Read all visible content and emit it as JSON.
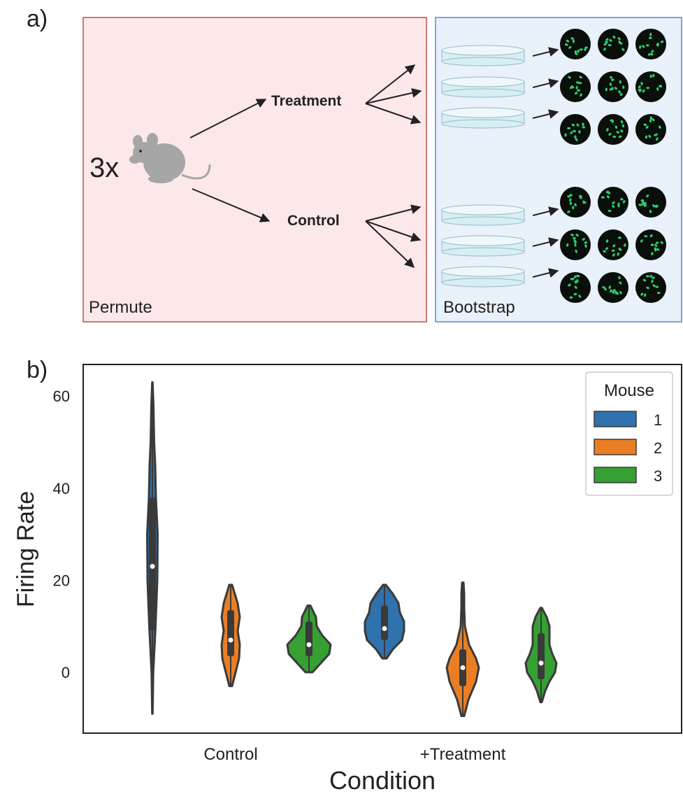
{
  "panel_a": {
    "label": "a)",
    "permute_label": "Permute",
    "bootstrap_label": "Bootstrap",
    "count_label": "3x",
    "treatment_label": "Treatment",
    "control_label": "Control",
    "colors": {
      "permute_bg": "#fce8e8",
      "permute_border": "#c0504d",
      "bootstrap_bg": "#e9f1fb",
      "bootstrap_border": "#5b8bc4",
      "mouse": "#a6a6a6",
      "dish": "#d6eef4",
      "cell_bg": "#0b0f0b",
      "cell": "#2ecc71"
    },
    "icons": [
      "mouse-icon",
      "petri-dish-icon",
      "cell-image-icon"
    ]
  },
  "panel_b": {
    "label": "b)"
  },
  "chart_data": {
    "type": "violin",
    "xlabel": "Condition",
    "ylabel": "Firing Rate",
    "categories": [
      "Control",
      "+Treatment"
    ],
    "ylim": [
      -12,
      67
    ],
    "yticks": [
      0,
      20,
      40,
      60
    ],
    "grid": false,
    "legend": {
      "title": "Mouse",
      "placement": "top-right"
    },
    "series": [
      {
        "name": "1",
        "color": "#2f72ad",
        "values": [
          {
            "category": "Control",
            "min": -9,
            "q1": 9,
            "median": 23,
            "q3": 38,
            "max": 63,
            "profile": [
              [
                -9,
                0.3
              ],
              [
                0,
                1.2
              ],
              [
                10,
                4.5
              ],
              [
                20,
                7
              ],
              [
                30,
                7.5
              ],
              [
                38,
                5
              ],
              [
                45,
                4
              ],
              [
                50,
                2.5
              ],
              [
                58,
                1.5
              ],
              [
                63,
                0.3
              ]
            ]
          },
          {
            "category": "+Treatment",
            "min": 3,
            "q1": 7,
            "median": 9.5,
            "q3": 14.5,
            "max": 19,
            "profile": [
              [
                3,
                3
              ],
              [
                5,
                12
              ],
              [
                7,
                25
              ],
              [
                9,
                28
              ],
              [
                11,
                28
              ],
              [
                13,
                22
              ],
              [
                15,
                20
              ],
              [
                17,
                12
              ],
              [
                19,
                2
              ]
            ]
          }
        ]
      },
      {
        "name": "2",
        "color": "#ea7e24",
        "values": [
          {
            "category": "Control",
            "min": -3,
            "q1": 3.5,
            "median": 7,
            "q3": 13.5,
            "max": 19,
            "profile": [
              [
                -3,
                2
              ],
              [
                0,
                7
              ],
              [
                3,
                12
              ],
              [
                6,
                13
              ],
              [
                9,
                10
              ],
              [
                12,
                13
              ],
              [
                15,
                10
              ],
              [
                17,
                6
              ],
              [
                19,
                2
              ]
            ]
          },
          {
            "category": "+Treatment",
            "min": -9.5,
            "q1": -3,
            "median": 1,
            "q3": 5,
            "max": 19.5,
            "profile": [
              [
                -9.5,
                2
              ],
              [
                -6,
                8
              ],
              [
                -2,
                19
              ],
              [
                1,
                23
              ],
              [
                3,
                19
              ],
              [
                6,
                9
              ],
              [
                10,
                3
              ],
              [
                14,
                2
              ],
              [
                17,
                2
              ],
              [
                19.5,
                1
              ]
            ]
          }
        ]
      },
      {
        "name": "3",
        "color": "#36a032",
        "values": [
          {
            "category": "Control",
            "min": 0,
            "q1": 3.5,
            "median": 6,
            "q3": 11,
            "max": 14.5,
            "profile": [
              [
                0,
                5
              ],
              [
                2,
                17
              ],
              [
                4,
                29
              ],
              [
                6,
                31
              ],
              [
                8,
                19
              ],
              [
                10,
                11
              ],
              [
                12,
                10
              ],
              [
                14.5,
                2
              ]
            ]
          },
          {
            "category": "+Treatment",
            "min": -6.5,
            "q1": -1.5,
            "median": 2,
            "q3": 8.5,
            "max": 14,
            "profile": [
              [
                -6.5,
                1
              ],
              [
                -4,
                6
              ],
              [
                -2,
                12
              ],
              [
                0,
                20
              ],
              [
                2,
                22
              ],
              [
                4,
                16
              ],
              [
                6,
                12
              ],
              [
                8,
                12
              ],
              [
                10,
                12
              ],
              [
                12,
                8
              ],
              [
                14,
                1
              ]
            ]
          }
        ]
      }
    ]
  }
}
